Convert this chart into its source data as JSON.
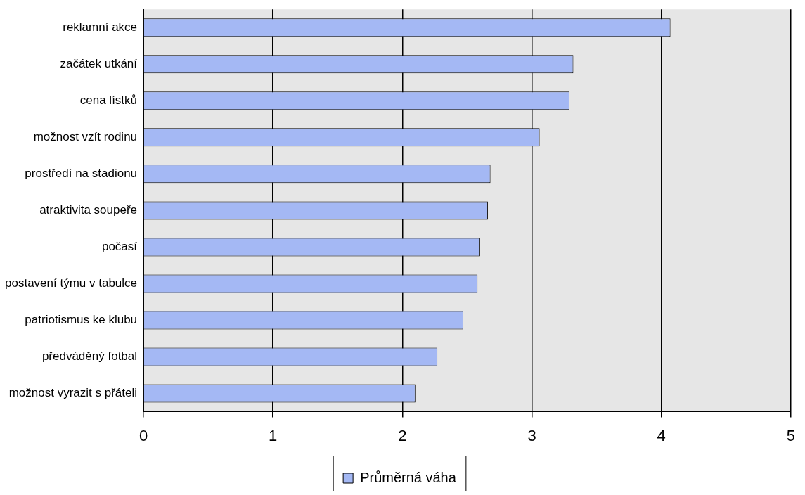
{
  "chart_data": {
    "type": "bar",
    "orientation": "horizontal",
    "categories": [
      "reklamní akce",
      "začátek utkání",
      "cena lístků",
      "možnost vzít rodinu",
      "prostředí na stadionu",
      "atraktivita soupeře",
      "počasí",
      "postavení týmu v tabulce",
      "patriotismus ke klubu",
      "předváděný fotbal",
      "možnost vyrazit s přáteli"
    ],
    "series": [
      {
        "name": "Průměrná váha",
        "color": "#a4b8f4",
        "values": [
          4.07,
          3.32,
          3.29,
          3.06,
          2.68,
          2.66,
          2.6,
          2.58,
          2.47,
          2.27,
          2.1
        ]
      }
    ],
    "xlim": [
      0,
      5
    ],
    "xticks": [
      0,
      1,
      2,
      3,
      4,
      5
    ],
    "grid": "x",
    "legend": "bottom"
  }
}
